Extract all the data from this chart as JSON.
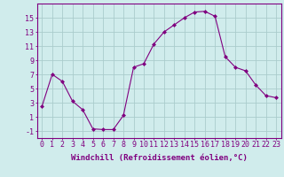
{
  "x": [
    0,
    1,
    2,
    3,
    4,
    5,
    6,
    7,
    8,
    9,
    10,
    11,
    12,
    13,
    14,
    15,
    16,
    17,
    18,
    19,
    20,
    21,
    22,
    23
  ],
  "y": [
    2.5,
    7.0,
    6.0,
    3.2,
    2.0,
    -0.7,
    -0.8,
    -0.8,
    1.2,
    8.0,
    8.5,
    11.3,
    13.0,
    14.0,
    15.0,
    15.8,
    15.9,
    15.2,
    9.5,
    8.0,
    7.5,
    5.5,
    4.0,
    3.7
  ],
  "line_color": "#800080",
  "marker": "D",
  "marker_size": 2,
  "bg_color": "#d0ecec",
  "grid_color": "#aacccc",
  "xlabel": "Windchill (Refroidissement éolien,°C)",
  "xlabel_fontsize": 6.5,
  "tick_fontsize": 6.0,
  "xlim": [
    -0.5,
    23.5
  ],
  "ylim": [
    -2,
    17
  ],
  "yticks": [
    -1,
    1,
    3,
    5,
    7,
    9,
    11,
    13,
    15
  ],
  "xticks": [
    0,
    1,
    2,
    3,
    4,
    5,
    6,
    7,
    8,
    9,
    10,
    11,
    12,
    13,
    14,
    15,
    16,
    17,
    18,
    19,
    20,
    21,
    22,
    23
  ]
}
